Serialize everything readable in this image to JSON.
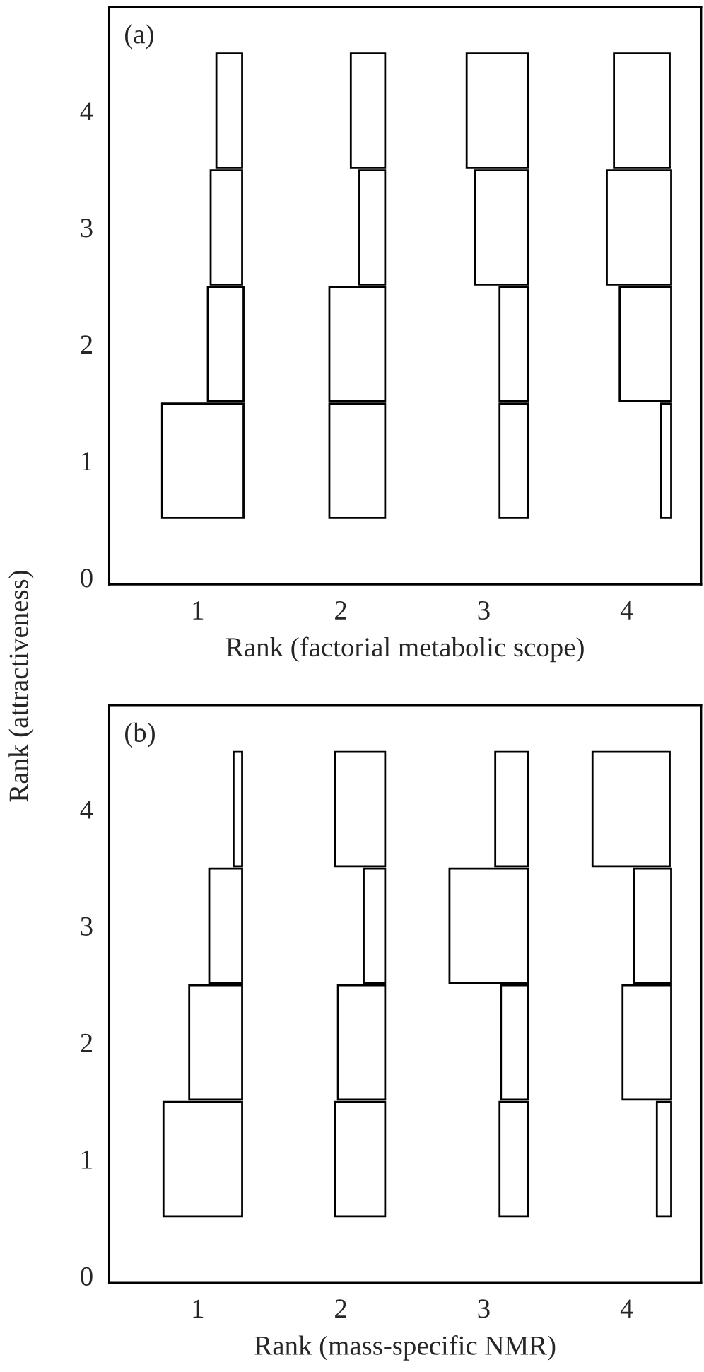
{
  "chart_data": [
    {
      "type": "bar",
      "orientation": "horizontal",
      "ylabel": "Rank (attractiveness)",
      "xlabel": "Rank (factorial metabolic scope)",
      "annotations": [
        "(a)"
      ],
      "categories": [
        "4",
        "3",
        "2",
        "1",
        "0"
      ],
      "xlim": [
        0.38,
        4.52
      ],
      "xticks": [
        1,
        2,
        3,
        4
      ],
      "grid": false,
      "legend": false,
      "series": [
        {
          "color": "#ffffff",
          "base": [
            1.13,
            1.09,
            1.07,
            0.75,
            null
          ],
          "values": [
            0.18,
            0.22,
            0.25,
            0.57,
            null
          ]
        },
        {
          "color": "#ffffff",
          "base": [
            2.07,
            2.13,
            1.92,
            1.92,
            null
          ],
          "values": [
            0.24,
            0.18,
            0.39,
            0.39,
            null
          ]
        },
        {
          "color": "#ffffff",
          "base": [
            2.88,
            2.94,
            3.11,
            3.11,
            null
          ],
          "values": [
            0.43,
            0.37,
            0.2,
            0.2,
            null
          ]
        },
        {
          "color": "#ffffff",
          "base": [
            3.91,
            3.86,
            3.95,
            4.24,
            null
          ],
          "values": [
            0.39,
            0.45,
            0.36,
            0.07,
            null
          ]
        }
      ]
    },
    {
      "type": "bar",
      "orientation": "horizontal",
      "xlabel": "Rank (mass-specific NMR)",
      "annotations": [
        "(b)"
      ],
      "categories": [
        "4",
        "3",
        "2",
        "1",
        "0"
      ],
      "xlim": [
        0.38,
        4.52
      ],
      "xticks": [
        1,
        2,
        3,
        4
      ],
      "grid": false,
      "legend": false,
      "series": [
        {
          "color": "#ffffff",
          "base": [
            1.25,
            1.08,
            0.94,
            0.76,
            null
          ],
          "values": [
            0.06,
            0.23,
            0.37,
            0.55,
            null
          ]
        },
        {
          "color": "#ffffff",
          "base": [
            1.96,
            2.16,
            1.98,
            1.96,
            null
          ],
          "values": [
            0.35,
            0.15,
            0.33,
            0.35,
            null
          ]
        },
        {
          "color": "#ffffff",
          "base": [
            3.08,
            2.76,
            3.12,
            3.11,
            null
          ],
          "values": [
            0.23,
            0.55,
            0.19,
            0.2,
            null
          ]
        },
        {
          "color": "#ffffff",
          "base": [
            3.76,
            4.05,
            3.97,
            4.21,
            null
          ],
          "values": [
            0.54,
            0.26,
            0.34,
            0.1,
            null
          ]
        }
      ]
    }
  ]
}
